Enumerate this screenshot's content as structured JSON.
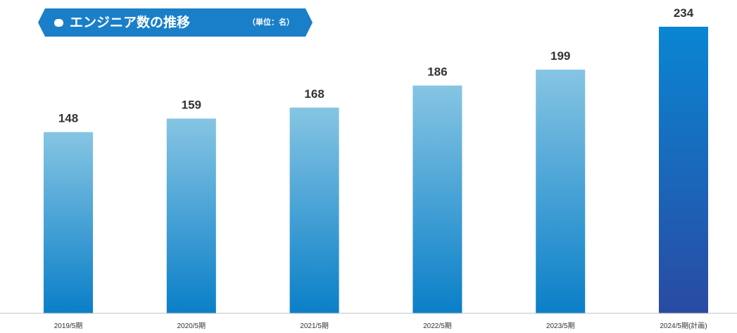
{
  "header": {
    "title": "エンジニア数の推移",
    "unit_note": "（単位：名）",
    "banner_color": "#1a7fc9"
  },
  "chart_data": {
    "type": "bar",
    "title": "エンジニア数の推移",
    "categories": [
      "2019/5期",
      "2020/5期",
      "2021/5期",
      "2022/5期",
      "2023/5期",
      "2024/5期(計画)"
    ],
    "values": [
      148,
      159,
      168,
      186,
      199,
      234
    ],
    "ylim": [
      0,
      234
    ],
    "grid": false,
    "bar_colors": {
      "actual_top": "#86c5e3",
      "actual_bottom": "#0a7fc8",
      "plan_top": "#0a86d2",
      "plan_bottom": "#2a4aa3"
    },
    "axis_color": "#bfbfbf"
  }
}
